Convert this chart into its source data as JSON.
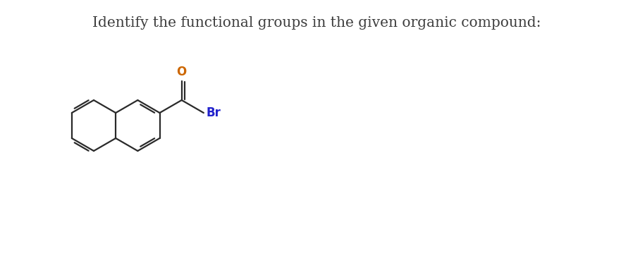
{
  "title": "Identify the functional groups in the given organic compound:",
  "title_color": "#3d3d3d",
  "title_fontsize": 14.5,
  "background_color": "#ffffff",
  "O_color": "#cc6600",
  "Br_color": "#2222cc",
  "bond_color": "#2a2a2a",
  "bond_lw": 1.6
}
